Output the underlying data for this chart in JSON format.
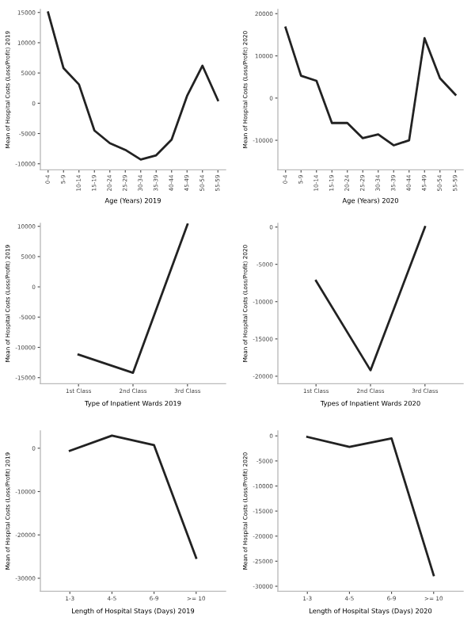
{
  "chart_data": [
    {
      "type": "line",
      "xlabel": "Age (Years) 2019",
      "ylabel": "Mean of Hospital Costs (Loss/Profit) 2019",
      "categories": [
        "0-4",
        "5-9",
        "10-14",
        "15-19",
        "20-24",
        "25-29",
        "30-34",
        "35-39",
        "40-44",
        "45-49",
        "50-54",
        "55-59"
      ],
      "series": [
        {
          "color": "#222222",
          "values": [
            15000,
            5800,
            3100,
            -4500,
            -6600,
            -7700,
            -9300,
            -8600,
            -6000,
            1200,
            6200,
            500
          ]
        }
      ],
      "ylim": [
        -11000,
        15500
      ],
      "yticks": [
        -10000,
        -5000,
        0,
        5000,
        10000,
        15000
      ],
      "grid": false,
      "marker": "none",
      "line_style": "solid"
    },
    {
      "type": "line",
      "xlabel": "Age (Years) 2020",
      "ylabel": "Mean of Hospital Costs (Loss/Profit) 2020",
      "categories": [
        "0-4",
        "5-9",
        "10-14",
        "15-19",
        "20-24",
        "25-29",
        "30-34",
        "35-39",
        "40-44",
        "45-49",
        "50-54",
        "55-59"
      ],
      "series": [
        {
          "color": "#222222",
          "values": [
            16700,
            5300,
            4100,
            -5900,
            -5900,
            -9500,
            -8600,
            -11200,
            -10000,
            14200,
            4700,
            800
          ]
        }
      ],
      "ylim": [
        -17000,
        21000
      ],
      "yticks": [
        -10000,
        0,
        10000,
        20000
      ],
      "grid": false,
      "marker": "none",
      "line_style": "solid"
    },
    {
      "type": "line",
      "xlabel": "Type of Inpatient Wards 2019",
      "ylabel": "Mean of Hospital Costs (Loss/Profit) 2019",
      "categories": [
        "1st Class",
        "2nd Class",
        "3rd Class"
      ],
      "series": [
        {
          "color": "#222222",
          "values": [
            -11200,
            -14200,
            10300
          ]
        }
      ],
      "ylim": [
        -16000,
        10500
      ],
      "yticks": [
        -15000,
        -10000,
        -5000,
        0,
        5000,
        10000
      ],
      "grid": false,
      "marker": "none",
      "line_style": "solid"
    },
    {
      "type": "line",
      "xlabel": "Types of Inpatient Wards 2020",
      "ylabel": "Mean of Hospital Costs (Loss/Profit) 2020",
      "categories": [
        "1st Class",
        "2nd Class",
        "3rd Class"
      ],
      "series": [
        {
          "color": "#222222",
          "values": [
            -7200,
            -19200,
            0
          ]
        }
      ],
      "ylim": [
        -21000,
        500
      ],
      "yticks": [
        -20000,
        -15000,
        -10000,
        -5000,
        0
      ],
      "grid": false,
      "marker": "none",
      "line_style": "solid"
    },
    {
      "type": "line",
      "xlabel": "Length of Hospital Stays (Days) 2019",
      "ylabel": "Mean of Hospital Costs (Loss/Profit) 2019",
      "categories": [
        "1-3",
        "4-5",
        "6-9",
        ">= 10"
      ],
      "series": [
        {
          "color": "#222222",
          "values": [
            -600,
            2900,
            700,
            -25300
          ]
        }
      ],
      "ylim": [
        -33000,
        4000
      ],
      "yticks": [
        -30000,
        -20000,
        -10000,
        0
      ],
      "grid": false,
      "marker": "none",
      "line_style": "solid"
    },
    {
      "type": "line",
      "xlabel": "Length of Hospital Stays (Days) 2020",
      "ylabel": "Mean of Hospital Costs (Loss/Profit) 2020",
      "categories": [
        "1-3",
        "4-5",
        "6-9",
        ">= 10"
      ],
      "series": [
        {
          "color": "#222222",
          "values": [
            -200,
            -2200,
            -500,
            -27800
          ]
        }
      ],
      "ylim": [
        -31000,
        1000
      ],
      "yticks": [
        -30000,
        -25000,
        -20000,
        -15000,
        -10000,
        -5000,
        0
      ],
      "grid": false,
      "marker": "none",
      "line_style": "solid"
    }
  ]
}
